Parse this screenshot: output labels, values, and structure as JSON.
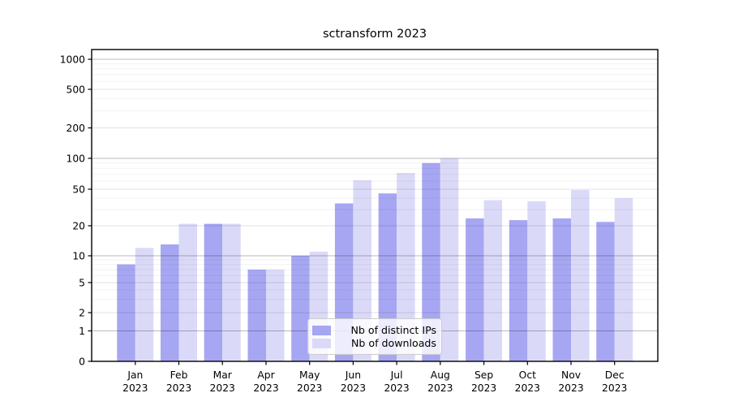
{
  "chart_data": {
    "type": "bar",
    "title": "sctransform 2023",
    "categories": [
      "Jan",
      "Feb",
      "Mar",
      "Apr",
      "May",
      "Jun",
      "Jul",
      "Aug",
      "Sep",
      "Oct",
      "Nov",
      "Dec"
    ],
    "category_year": "2023",
    "series": [
      {
        "name": "Nb of distinct IPs",
        "color": "#a6a6f2",
        "values": [
          8,
          13,
          21,
          7,
          10,
          35,
          45,
          90,
          24,
          23,
          24,
          22
        ]
      },
      {
        "name": "Nb of downloads",
        "color": "#dadaf8",
        "values": [
          12,
          21,
          21,
          7,
          11,
          61,
          72,
          100,
          38,
          37,
          49,
          40
        ]
      }
    ],
    "xlabel": "",
    "ylabel": "",
    "yscale": "symlog",
    "yticks": [
      0,
      1,
      2,
      5,
      10,
      20,
      50,
      100,
      200,
      500,
      1000
    ],
    "ylim": [
      0,
      1250
    ],
    "grid": true,
    "legend_position": "lower center"
  }
}
